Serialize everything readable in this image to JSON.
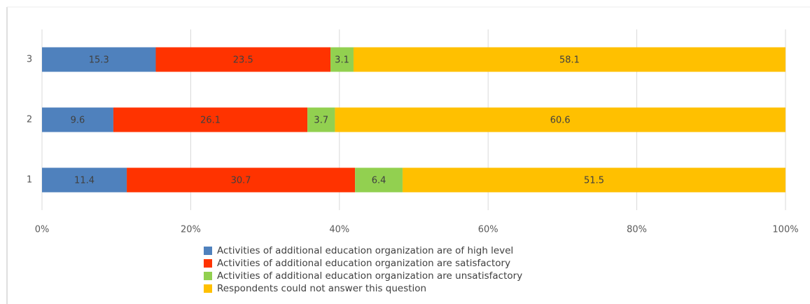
{
  "chart_data": {
    "type": "stacked_barh",
    "categories": [
      "1",
      "2",
      "3"
    ],
    "series": [
      {
        "name": "Activities of additional education organization are of high level",
        "color": "#4f81bd",
        "values": [
          11.4,
          9.6,
          15.3
        ]
      },
      {
        "name": "Activities of additional education organization are satisfactory",
        "color": "#ff3300",
        "values": [
          30.7,
          26.1,
          23.5
        ]
      },
      {
        "name": "Activities of additional education organization are unsatisfactory",
        "color": "#92d050",
        "values": [
          6.4,
          3.7,
          3.1
        ]
      },
      {
        "name": "Respondents could not answer this question",
        "color": "#ffc000",
        "values": [
          51.5,
          60.6,
          58.1
        ]
      }
    ],
    "xlim": [
      0,
      100
    ],
    "xticks": [
      {
        "value": 0,
        "label": "0%"
      },
      {
        "value": 20,
        "label": "20%"
      },
      {
        "value": 40,
        "label": "40%"
      },
      {
        "value": 60,
        "label": "60%"
      },
      {
        "value": 80,
        "label": "80%"
      },
      {
        "value": 100,
        "label": "100%"
      }
    ],
    "grid": true,
    "legend": "bottom"
  }
}
